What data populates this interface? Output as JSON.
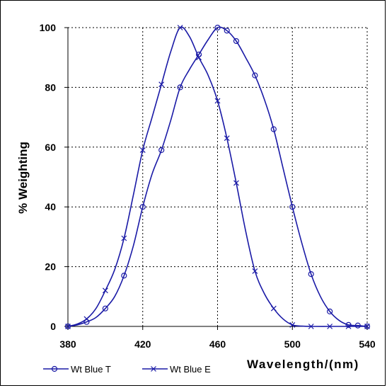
{
  "chart_data": {
    "type": "line",
    "title": "",
    "xlabel": "Wavelength/(nm)",
    "ylabel": "% Weighting",
    "xlim": [
      380,
      540
    ],
    "ylim": [
      0,
      100
    ],
    "xticks": [
      "380",
      "420",
      "460",
      "500",
      "540"
    ],
    "yticks": [
      "0",
      "20",
      "40",
      "60",
      "80",
      "100"
    ],
    "grid": true,
    "legend_position": "bottom-left",
    "series": [
      {
        "name": "Wt Blue T",
        "marker": "circle",
        "color": "#1a1aa6",
        "x": [
          380,
          385,
          390,
          395,
          400,
          405,
          410,
          415,
          420,
          425,
          430,
          435,
          440,
          445,
          450,
          455,
          460,
          465,
          470,
          475,
          480,
          485,
          490,
          495,
          500,
          505,
          510,
          515,
          520,
          525,
          530,
          535,
          540
        ],
        "y": [
          0,
          0.5,
          1.5,
          3,
          6,
          10,
          17,
          27,
          40,
          51,
          59,
          69,
          80,
          86,
          91,
          96,
          100,
          99,
          95.5,
          90,
          84,
          76,
          66,
          53,
          40,
          28,
          17.5,
          10,
          5,
          2,
          0.5,
          0.3,
          0
        ],
        "marker_x": [
          380,
          390,
          400,
          410,
          420,
          430,
          440,
          450,
          460,
          465,
          470,
          480,
          490,
          500,
          510,
          520,
          530,
          535,
          540
        ]
      },
      {
        "name": "Wt Blue E",
        "marker": "x",
        "color": "#1a1aa6",
        "x": [
          380,
          385,
          390,
          395,
          400,
          405,
          410,
          415,
          420,
          425,
          430,
          435,
          440,
          445,
          450,
          455,
          460,
          465,
          470,
          475,
          480,
          485,
          490,
          495,
          500,
          505,
          510,
          520,
          530,
          540
        ],
        "y": [
          0,
          0.8,
          2.5,
          6,
          12,
          19,
          29.5,
          44,
          59,
          70,
          81,
          92,
          100,
          97,
          90,
          84,
          75.5,
          63,
          48,
          32,
          18.5,
          11,
          6,
          2.5,
          0.5,
          0.1,
          0,
          0,
          0,
          0
        ],
        "marker_x": [
          380,
          390,
          400,
          410,
          420,
          430,
          440,
          450,
          460,
          465,
          470,
          480,
          490,
          500,
          510,
          520,
          530,
          540
        ]
      }
    ]
  }
}
